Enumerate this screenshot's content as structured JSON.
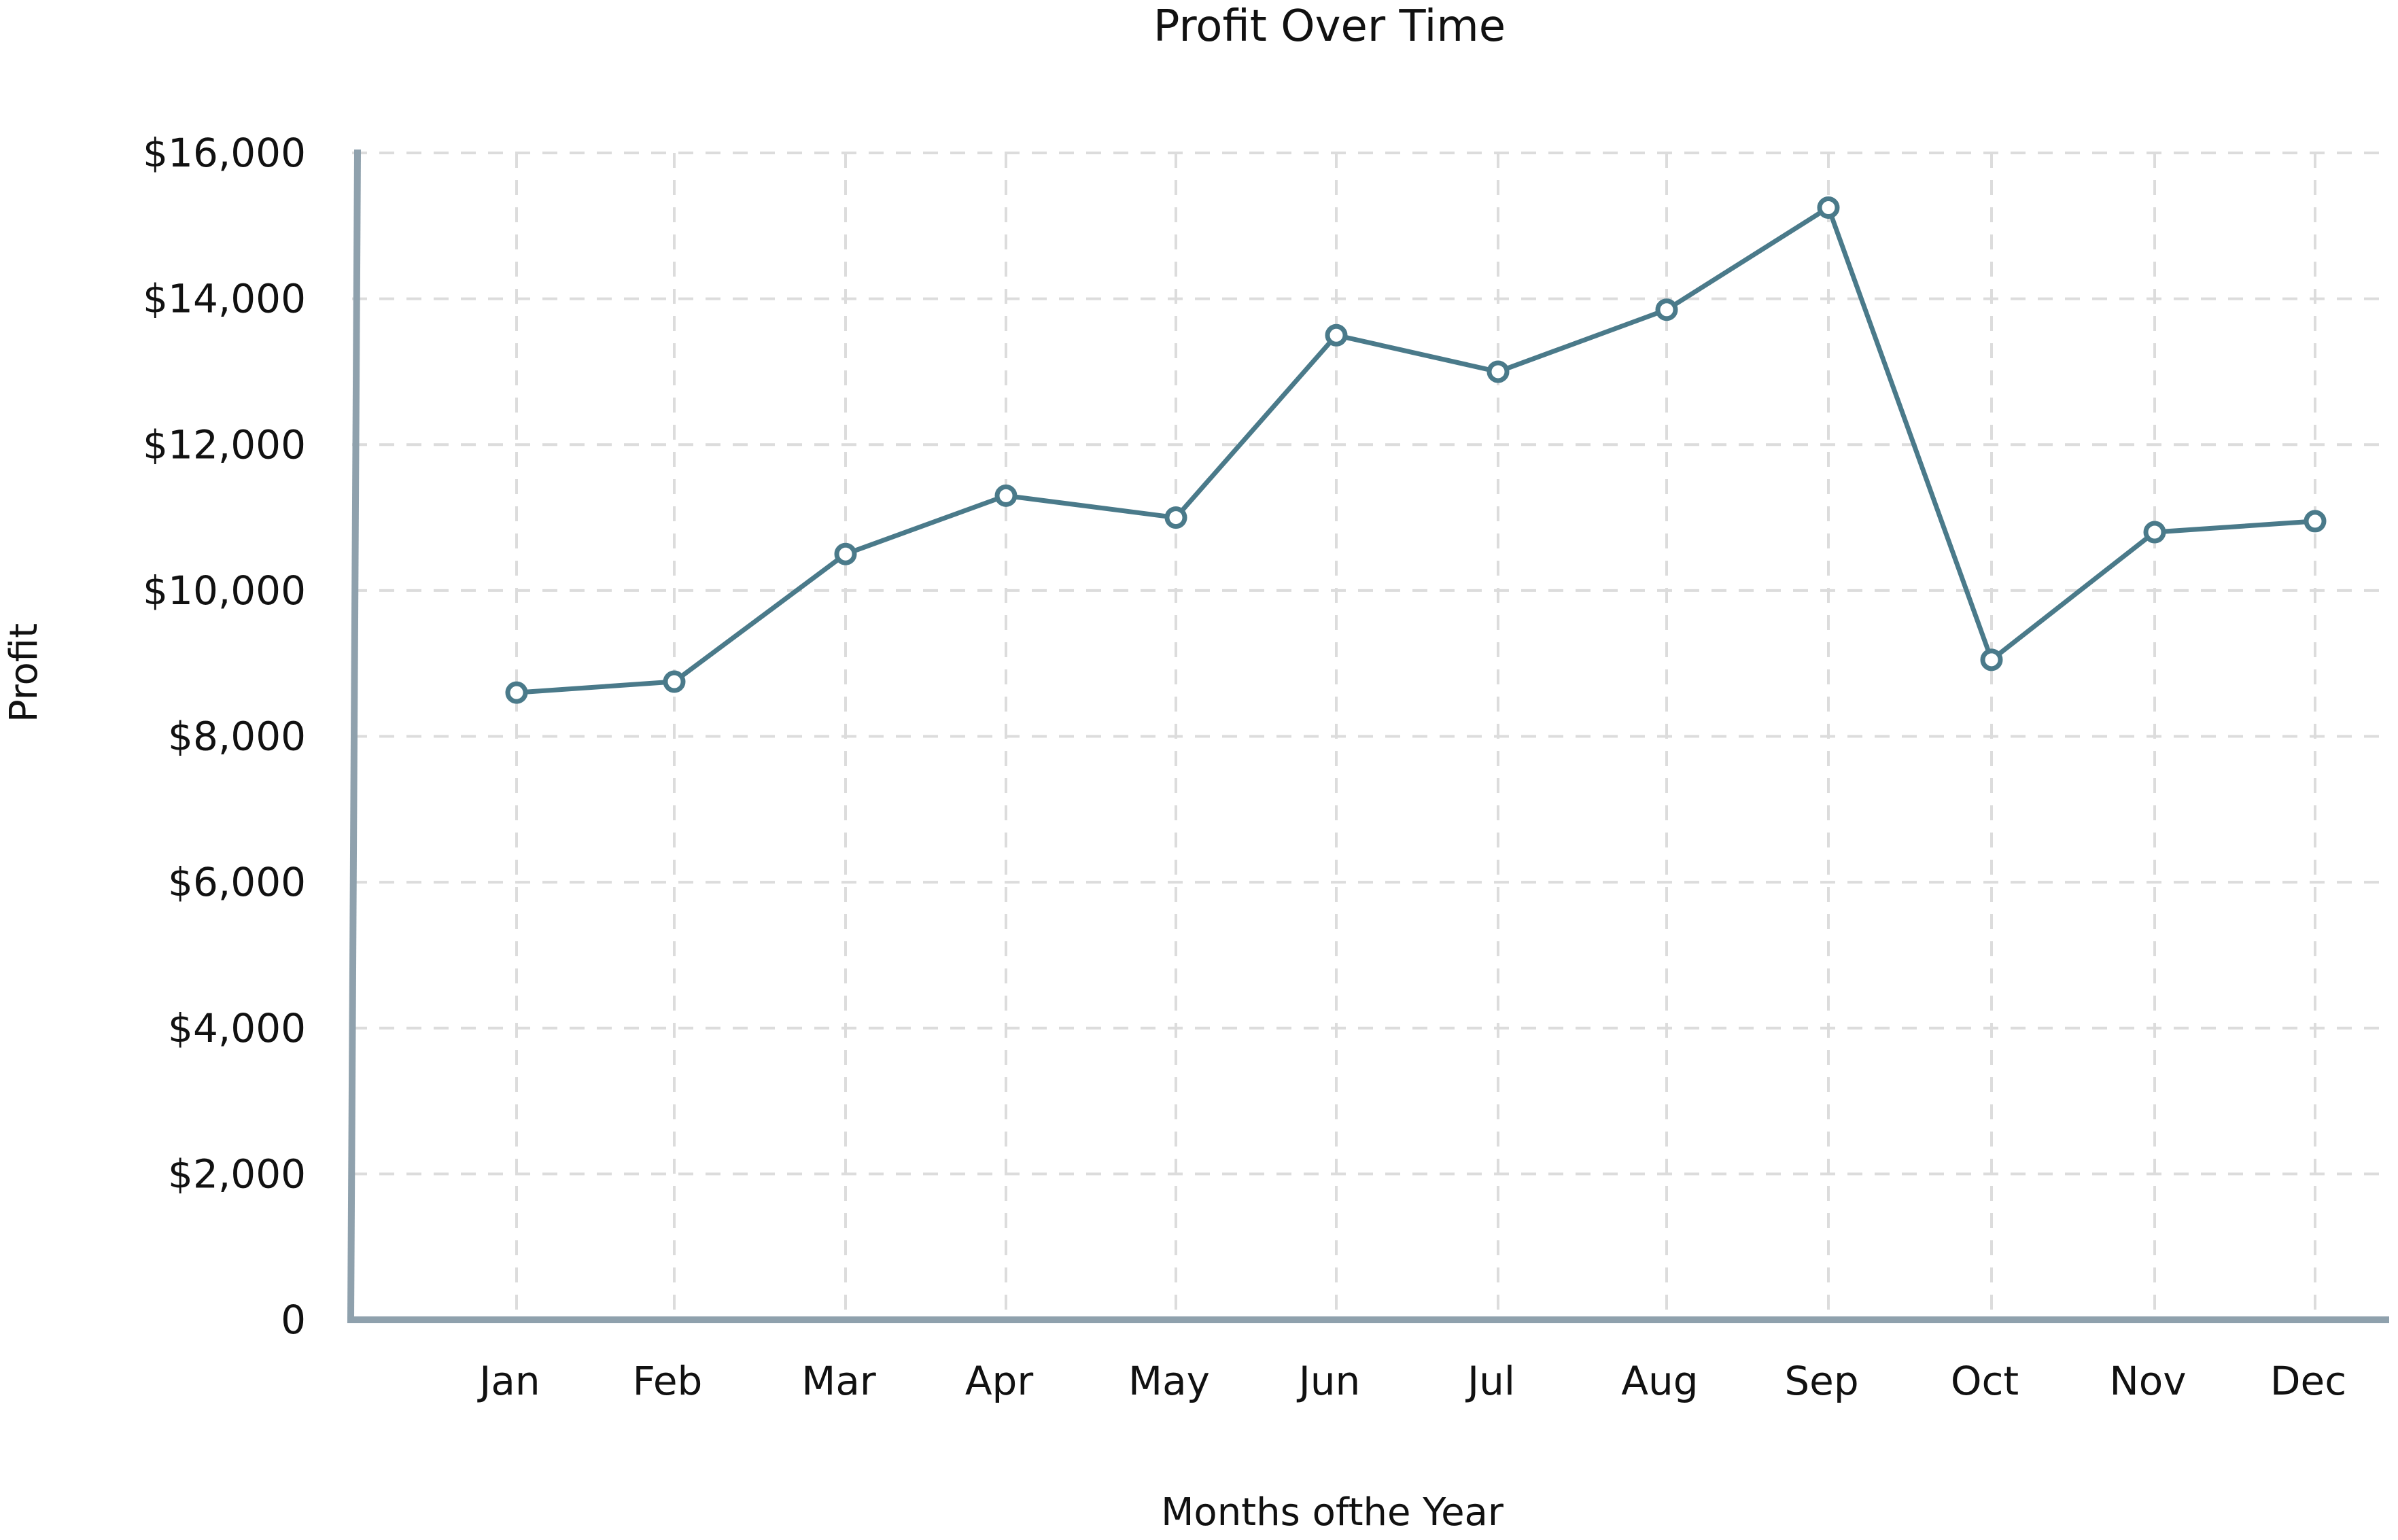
{
  "chart_data": {
    "type": "line",
    "title": "Profit Over Time",
    "xlabel": "Months ofthe Year",
    "ylabel": "Profit",
    "categories": [
      "Jan",
      "Feb",
      "Mar",
      "Apr",
      "May",
      "Jun",
      "Jul",
      "Aug",
      "Sep",
      "Oct",
      "Nov",
      "Dec"
    ],
    "series": [
      {
        "values": [
          8600,
          8750,
          10500,
          11300,
          11000,
          13500,
          13000,
          13850,
          15250,
          9050,
          10800,
          10950
        ]
      }
    ],
    "ylim": [
      0,
      16000
    ],
    "y_ticks": [
      0,
      2000,
      4000,
      6000,
      8000,
      10000,
      12000,
      14000,
      16000
    ],
    "y_tick_labels": [
      "0",
      "$2,000",
      "$4,000",
      "$6,000",
      "$8,000",
      "$10,000",
      "$12,000",
      "$14,000",
      "$16,000"
    ],
    "grid": true,
    "legend": "none",
    "colors": {
      "series": "#4a7a8a",
      "axis": "#8fa1ad",
      "grid": "#dcdcdc"
    }
  }
}
